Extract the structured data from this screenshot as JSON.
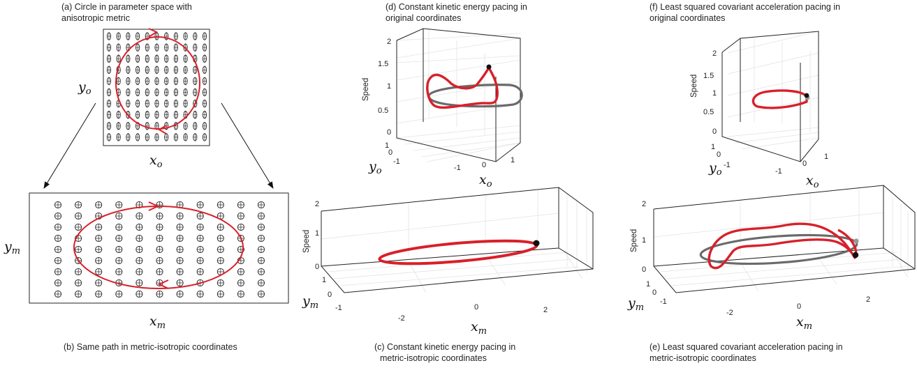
{
  "panels": {
    "a": {
      "caption_l1": "(a) Circle in parameter space with",
      "caption_l2": "anisotropic metric",
      "xlabel": "x",
      "xsub": "o",
      "ylabel": "y",
      "ysub": "o"
    },
    "b": {
      "caption": "(b) Same path in metric-isotropic coordinates",
      "xlabel": "x",
      "xsub": "m",
      "ylabel": "y",
      "ysub": "m"
    },
    "c": {
      "caption_l1": "(c) Constant kinetic energy pacing in",
      "caption_l2": "metric-isotropic coordinates",
      "zlabel": "Speed",
      "zticks": [
        "0",
        "1",
        "2"
      ],
      "yticks": [
        "1",
        "0",
        "-1"
      ],
      "xticks": [
        "-2",
        "0",
        "2"
      ],
      "xlabel": "x",
      "xsub": "m",
      "ylabel": "y",
      "ysub": "m"
    },
    "d": {
      "caption_l1": "(d) Constant kinetic energy pacing in",
      "caption_l2": "original coordinates",
      "zlabel": "Speed",
      "zticks": [
        "0",
        "0.5",
        "1",
        "1.5",
        "2"
      ],
      "yticks": [
        "1",
        "0",
        "-1"
      ],
      "xticks": [
        "-1",
        "0",
        "1"
      ],
      "xlabel": "x",
      "xsub": "o",
      "ylabel": "y",
      "ysub": "o"
    },
    "e": {
      "caption_l1": "(e) Least squared covariant acceleration pacing in",
      "caption_l2": "metric-isotropic coordinates",
      "zlabel": "Speed",
      "zticks": [
        "0",
        "1",
        "2"
      ],
      "yticks": [
        "1",
        "0",
        "-1"
      ],
      "xticks": [
        "-2",
        "0",
        "2"
      ],
      "xlabel": "x",
      "xsub": "m",
      "ylabel": "y",
      "ysub": "m"
    },
    "f": {
      "caption_l1": "(f) Least squared covariant acceleration pacing in",
      "caption_l2": "original coordinates",
      "zlabel": "Speed",
      "zticks": [
        "0",
        "0.5",
        "1",
        "1.5",
        "2"
      ],
      "yticks": [
        "1",
        "0",
        "-1"
      ],
      "xticks": [
        "-1",
        "0",
        "1"
      ],
      "xlabel": "x",
      "xsub": "o",
      "ylabel": "y",
      "ysub": "o"
    }
  },
  "colors": {
    "path": "#d8202a",
    "reference_ring": "#6a6a6a",
    "marker": "#111111"
  },
  "grid_markers": {
    "a": {
      "columns": 11,
      "rows": 10,
      "shape": "vertical-ellipse-with-cross"
    },
    "b": {
      "columns": 11,
      "rows": 9,
      "shape": "circle-with-cross"
    }
  }
}
